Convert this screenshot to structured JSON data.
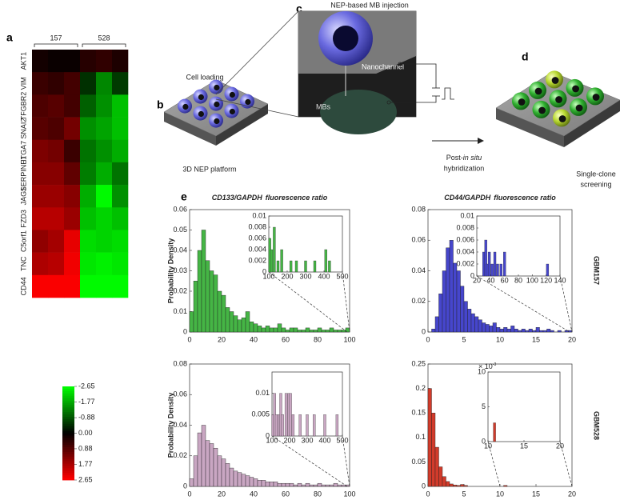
{
  "panel_labels": {
    "a": "a",
    "b": "b",
    "c": "c",
    "d": "d",
    "e": "e"
  },
  "heatmap": {
    "column_groups": [
      "157",
      "528"
    ],
    "rows": [
      "AKT1",
      "VIM",
      "TFGBR2",
      "SNAI2",
      "ITGA7",
      "SERPINE1",
      "JAG1",
      "FZD3",
      "C5orf1",
      "TNC",
      "CD44"
    ],
    "values": [
      [
        0.2,
        0.1,
        0.1,
        0.4,
        0.5,
        0.3
      ],
      [
        0.6,
        0.5,
        0.7,
        -0.5,
        -1.4,
        -0.6
      ],
      [
        0.8,
        0.9,
        0.7,
        -1,
        -1.5,
        -2
      ],
      [
        0.9,
        0.8,
        1.2,
        -1.5,
        -1.7,
        -2
      ],
      [
        1.3,
        1.2,
        0.6,
        -1.2,
        -1.5,
        -1.8
      ],
      [
        1.4,
        1.4,
        1,
        -1.3,
        -1.8,
        -1.2
      ],
      [
        1.6,
        1.6,
        1.4,
        -1.8,
        -2.6,
        -1.5
      ],
      [
        1.9,
        1.9,
        1.6,
        -2,
        -2.2,
        -2
      ],
      [
        1.5,
        1.7,
        2.4,
        -2.3,
        -2.2,
        -2.3
      ],
      [
        1.8,
        1.9,
        2.5,
        -2.4,
        -2.5,
        -2.4
      ],
      [
        2.6,
        2.6,
        2.6,
        -2.6,
        -2.6,
        -2.6
      ]
    ],
    "clim": [
      -2.65,
      2.65
    ],
    "colors": {
      "low": "#00ff00",
      "mid": "#000000",
      "high": "#ff0000"
    },
    "colorbar_ticks": [
      -2.65,
      -1.77,
      -0.88,
      {
        "value": 0,
        "label": "0.00"
      },
      0.88,
      1.77,
      2.65
    ]
  },
  "diagram": {
    "cell_loading": "Cell loading",
    "platform": "3D NEP platform",
    "injection": "NEP-based MB injection",
    "nanochannel": "Nanochannel",
    "mbs": "MBs",
    "post_hyb": {
      "prefix": "Post-",
      "italic": "in situ",
      "line2": "hybridization"
    },
    "screening": [
      "Single-clone",
      "screening"
    ]
  },
  "row_labels": [
    "GBM157",
    "GBM528"
  ],
  "charts": [
    {
      "type": "histogram",
      "title": {
        "italic": "CD133/GAPDH",
        "plain": "fluorescence ratio"
      },
      "ylabel": "Probability Density",
      "color": "#45b545",
      "bins": [
        0,
        2.5,
        5,
        7.5,
        10,
        12.5,
        15,
        17.5,
        20,
        22.5,
        25,
        27.5,
        30,
        32.5,
        35,
        37.5,
        40,
        42.5,
        45,
        47.5,
        50,
        52.5,
        55,
        57.5,
        60,
        62.5,
        65,
        67.5,
        70,
        72.5,
        75,
        77.5,
        80,
        82.5,
        85,
        87.5,
        90,
        92.5,
        95,
        97.5,
        100
      ],
      "values": [
        0.01,
        0.025,
        0.04,
        0.05,
        0.035,
        0.03,
        0.028,
        0.02,
        0.018,
        0.012,
        0.01,
        0.008,
        0.006,
        0.007,
        0.01,
        0.005,
        0.004,
        0.003,
        0.002,
        0.003,
        0.002,
        0.002,
        0.004,
        0.002,
        0.001,
        0.002,
        0.002,
        0.001,
        0.001,
        0.002,
        0.001,
        0.001,
        0.002,
        0.001,
        0.001,
        0.002,
        0.001,
        0.001,
        0.001,
        0.002
      ],
      "xlim": [
        0,
        100
      ],
      "xticks": [
        0,
        20,
        40,
        60,
        80,
        100
      ],
      "ylim": [
        0,
        0.06
      ],
      "yticks": [
        0,
        0.01,
        0.02,
        0.03,
        0.04,
        0.05,
        0.06
      ],
      "inset": {
        "x": [
          105,
          115,
          130,
          150,
          170,
          220,
          250,
          300,
          350,
          410,
          430
        ],
        "values": [
          0.006,
          0.004,
          0.008,
          0.002,
          0.004,
          0.002,
          0.002,
          0.002,
          0.002,
          0.004,
          0.002
        ],
        "xlim": [
          100,
          500
        ],
        "xticks": [
          100,
          200,
          300,
          400,
          500
        ],
        "ylim": [
          0,
          0.01
        ],
        "yticks": [
          0,
          0.002,
          0.004,
          0.006,
          0.008,
          0.01
        ]
      }
    },
    {
      "type": "histogram",
      "title": {
        "italic": "CD44/GAPDH",
        "plain": "fluorescence ratio"
      },
      "color": "#4646cc",
      "bins": [
        0,
        0.5,
        1,
        1.5,
        2,
        2.5,
        3,
        3.5,
        4,
        4.5,
        5,
        5.5,
        6,
        6.5,
        7,
        7.5,
        8,
        8.5,
        9,
        9.5,
        10,
        10.5,
        11,
        11.5,
        12,
        12.5,
        13,
        13.5,
        14,
        14.5,
        15,
        15.5,
        16,
        16.5,
        17,
        17.5,
        18,
        18.5,
        19,
        19.5,
        20
      ],
      "values": [
        0,
        0.002,
        0.01,
        0.025,
        0.04,
        0.055,
        0.06,
        0.045,
        0.04,
        0.03,
        0.02,
        0.015,
        0.012,
        0.01,
        0.008,
        0.006,
        0.005,
        0.004,
        0.006,
        0.003,
        0.002,
        0.003,
        0.002,
        0.004,
        0.002,
        0.001,
        0.002,
        0.001,
        0.002,
        0.001,
        0.003,
        0.001,
        0.001,
        0.002,
        0.001,
        0,
        0.001,
        0,
        0.001,
        0.001
      ],
      "xlim": [
        0,
        20
      ],
      "xticks": [
        0,
        5,
        10,
        15,
        20
      ],
      "ylim": [
        0,
        0.08
      ],
      "yticks": [
        0,
        0.02,
        0.04,
        0.06,
        0.08
      ],
      "inset": {
        "x": [
          30,
          33,
          35,
          38,
          42,
          46,
          50,
          55,
          60,
          122
        ],
        "values": [
          0.004,
          0.006,
          0.002,
          0.004,
          0.002,
          0.004,
          0.002,
          0.002,
          0.004,
          0.002
        ],
        "xlim": [
          20,
          140
        ],
        "xticks": [
          20,
          40,
          60,
          80,
          100,
          120,
          140
        ],
        "ylim": [
          0,
          0.01
        ],
        "yticks": [
          0,
          0.002,
          0.004,
          0.006,
          0.008,
          0.01
        ]
      }
    },
    {
      "type": "histogram",
      "ylabel": "Probability Density",
      "color": "#c9a6c2",
      "bins": [
        0,
        2.5,
        5,
        7.5,
        10,
        12.5,
        15,
        17.5,
        20,
        22.5,
        25,
        27.5,
        30,
        32.5,
        35,
        37.5,
        40,
        42.5,
        45,
        47.5,
        50,
        52.5,
        55,
        57.5,
        60,
        62.5,
        65,
        67.5,
        70,
        72.5,
        75,
        77.5,
        80,
        82.5,
        85,
        87.5,
        90,
        92.5,
        95,
        97.5,
        100
      ],
      "values": [
        0.005,
        0.02,
        0.035,
        0.04,
        0.03,
        0.028,
        0.025,
        0.02,
        0.018,
        0.015,
        0.012,
        0.01,
        0.009,
        0.008,
        0.007,
        0.006,
        0.005,
        0.004,
        0.004,
        0.003,
        0.003,
        0.003,
        0.002,
        0.002,
        0.002,
        0.002,
        0.001,
        0.002,
        0.001,
        0.002,
        0.001,
        0.001,
        0.002,
        0.001,
        0.001,
        0.001,
        0.002,
        0.001,
        0.001,
        0.001
      ],
      "xlim": [
        0,
        100
      ],
      "xticks": [
        0,
        20,
        40,
        60,
        80,
        100
      ],
      "ylim": [
        0,
        0.08
      ],
      "yticks": [
        0,
        0.02,
        0.04,
        0.06,
        0.08
      ],
      "inset": {
        "x": [
          105,
          115,
          125,
          140,
          150,
          160,
          180,
          195,
          205,
          220,
          260,
          300,
          340,
          400,
          470
        ],
        "values": [
          0.005,
          0.01,
          0.005,
          0.005,
          0.01,
          0.005,
          0.01,
          0.01,
          0.01,
          0.005,
          0.005,
          0.005,
          0.005,
          0.005,
          0.005
        ],
        "xlim": [
          100,
          500
        ],
        "xticks": [
          100,
          200,
          300,
          400,
          500
        ],
        "ylim": [
          0,
          0.015
        ],
        "yticks": [
          0,
          0.005,
          0.01
        ]
      }
    },
    {
      "type": "histogram",
      "color": "#d13b2b",
      "bins": [
        0,
        0.5,
        1,
        1.5,
        2,
        2.5,
        3,
        3.5,
        4,
        4.5,
        5,
        5.5,
        6,
        6.5,
        7,
        7.5,
        8,
        8.5,
        9,
        9.5,
        10,
        10.5,
        11,
        11.5,
        12,
        12.5,
        13,
        13.5,
        14,
        14.5,
        15,
        15.5,
        16,
        16.5,
        17,
        17.5,
        18,
        18.5,
        19,
        19.5,
        20
      ],
      "values": [
        0.2,
        0.15,
        0.08,
        0.04,
        0.02,
        0.01,
        0.005,
        0.003,
        0.002,
        0.004,
        0.002,
        0,
        0,
        0,
        0,
        0,
        0,
        0,
        0,
        0,
        0,
        0.002,
        0,
        0,
        0,
        0,
        0,
        0,
        0,
        0,
        0,
        0,
        0,
        0,
        0,
        0,
        0,
        0,
        0,
        0
      ],
      "xlim": [
        0,
        20
      ],
      "xticks": [
        0,
        5,
        10,
        15,
        20
      ],
      "ylim": [
        0,
        0.25
      ],
      "yticks": [
        0,
        0.05,
        0.1,
        0.15,
        0.2,
        0.25
      ],
      "inset": {
        "x": [
          10.9
        ],
        "values": [
          0.0027
        ],
        "xlim": [
          10,
          20
        ],
        "xticks": [
          10,
          15,
          20
        ],
        "ylim": [
          0,
          0.01
        ],
        "yticks": [
          0,
          {
            "value": 0.005,
            "label": "5"
          },
          {
            "value": 0.01,
            "label": "10"
          }
        ],
        "exponent": {
          "base": "× 10",
          "power": "-3"
        }
      }
    }
  ]
}
